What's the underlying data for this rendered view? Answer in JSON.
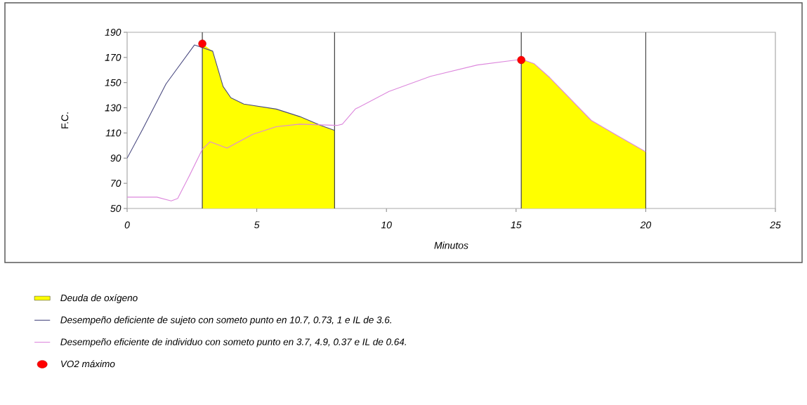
{
  "chart_data": {
    "type": "line",
    "xlabel": "Minutos",
    "ylabel": "F.C.",
    "xlim": [
      0,
      25
    ],
    "xticks": [
      0,
      5,
      10,
      15,
      20,
      25
    ],
    "ylim": [
      50,
      190
    ],
    "yticks": [
      50,
      70,
      90,
      110,
      130,
      150,
      170,
      190
    ],
    "grid": false,
    "legend": "bottom",
    "line_style": "solid",
    "ref_lines": [
      {
        "axis": "x",
        "value": 2.9,
        "color": "#404040"
      },
      {
        "axis": "x",
        "value": 8,
        "color": "#404040"
      },
      {
        "axis": "x",
        "value": 15.2,
        "color": "#404040"
      },
      {
        "axis": "x",
        "value": 20,
        "color": "#404040"
      }
    ],
    "series": [
      {
        "name": "Desempeño deficiente de sujeto con someto punto en 10.7, 0.73, 1 e IL de 3.6.",
        "marker": "none",
        "color": "#4a4a80",
        "x": [
          0,
          0.6,
          1.5,
          2.6,
          3.3,
          3.7,
          4.0,
          4.5,
          5.75,
          6.66,
          7.47,
          8
        ],
        "values": [
          90,
          113,
          149,
          180,
          175,
          147,
          138,
          133,
          129,
          123,
          116,
          112
        ]
      },
      {
        "name": "Desempeño eficiente de individuo con someto punto en 3.7, 4.9, 0.37 e IL de 0.64.",
        "marker": "none",
        "color": "#dd88dd",
        "x": [
          0,
          1.15,
          1.7,
          1.95,
          2.4,
          2.9,
          3.2,
          3.85,
          4.85,
          5.75,
          6.65,
          8.1,
          8.3,
          8.8,
          10.1,
          11.7,
          13.5,
          15,
          15.3,
          15.7,
          16.3,
          17.9,
          18.9,
          20
        ],
        "values": [
          59,
          59,
          56,
          58,
          76,
          97,
          103,
          98,
          109,
          115,
          117,
          116,
          117,
          129,
          143,
          155,
          164,
          168,
          168,
          165,
          154,
          120,
          108,
          95
        ]
      },
      {
        "name": "VO2 máximo",
        "type": "scatter",
        "marker": "circle",
        "color": "#ff0000",
        "x": [
          2.9,
          15.2
        ],
        "values": [
          181,
          168
        ]
      },
      {
        "name": "Deuda de oxígeno",
        "type": "area",
        "marker": "none",
        "color": "#ffff00",
        "x": [
          2.9,
          3.3,
          3.7,
          4.0,
          4.5,
          5.75,
          6.66,
          7.47,
          8,
          11,
          15.2,
          15.3,
          15.7,
          16.3,
          17.9,
          18.9,
          20
        ],
        "values": [
          181,
          175,
          147,
          138,
          133,
          129,
          123,
          116,
          112,
          null,
          168,
          168,
          165,
          154,
          120,
          108,
          95
        ]
      }
    ]
  }
}
